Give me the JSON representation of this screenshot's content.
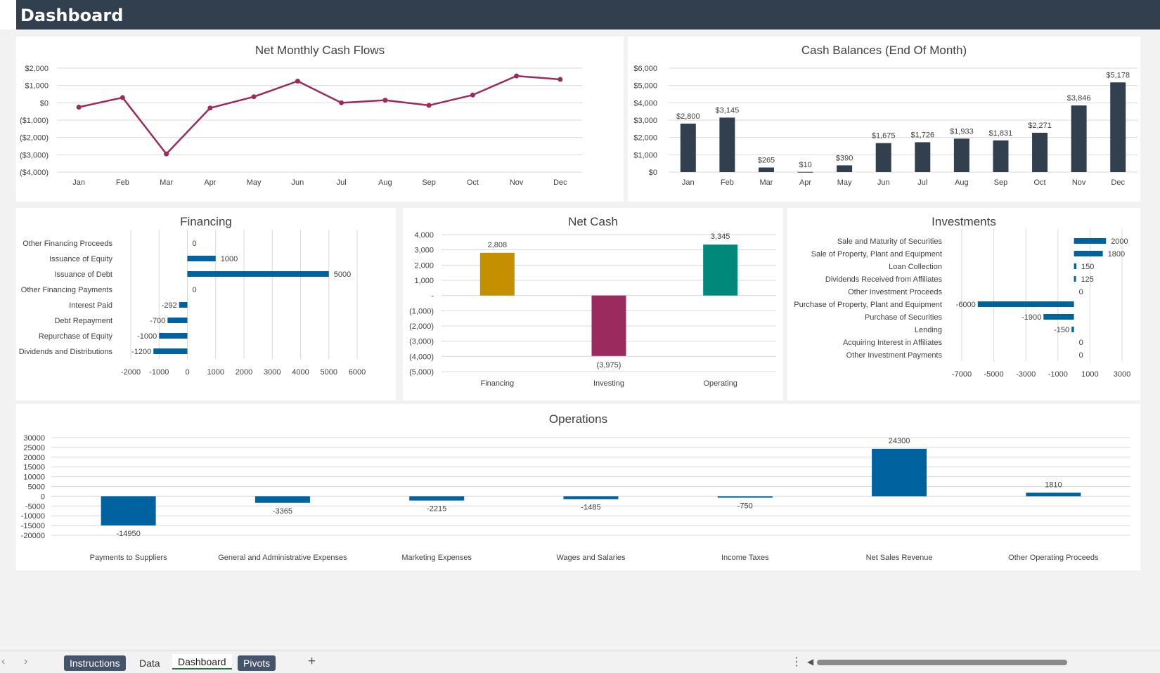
{
  "header": {
    "title": "Dashboard"
  },
  "sheet_tabs": [
    {
      "label": "Instructions",
      "style": "dark"
    },
    {
      "label": "Data",
      "style": "plain"
    },
    {
      "label": "Dashboard",
      "style": "active"
    },
    {
      "label": "Pivots",
      "style": "dark"
    }
  ],
  "colors": {
    "line": "#9b2b5e",
    "bars_dark": "#323f4f",
    "bars_blue": "#00639f",
    "financing": "#c49000",
    "investing": "#9b2b5e",
    "operating": "#00897b",
    "header": "#323f4f"
  },
  "chart_data": [
    {
      "id": "net-monthly",
      "type": "line",
      "title": "Net Monthly Cash Flows",
      "categories": [
        "Jan",
        "Feb",
        "Mar",
        "Apr",
        "May",
        "Jun",
        "Jul",
        "Aug",
        "Sep",
        "Oct",
        "Nov",
        "Dec"
      ],
      "values": [
        -250,
        300,
        -2950,
        -300,
        350,
        1250,
        0,
        150,
        -150,
        450,
        1550,
        1350
      ],
      "ylim": [
        -4000,
        2000
      ],
      "yticks": [
        "$2,000",
        "$1,000",
        "$0",
        "($1,000)",
        "($2,000)",
        "($3,000)",
        "($4,000)"
      ],
      "color": "#9b2b5e"
    },
    {
      "id": "cash-balances",
      "type": "bar",
      "title": "Cash Balances (End Of Month)",
      "categories": [
        "Jan",
        "Feb",
        "Mar",
        "Apr",
        "May",
        "Jun",
        "Jul",
        "Aug",
        "Sep",
        "Oct",
        "Nov",
        "Dec"
      ],
      "values": [
        2800,
        3145,
        265,
        10,
        390,
        1675,
        1726,
        1933,
        1831,
        2271,
        3846,
        5178
      ],
      "labels": [
        "$2,800",
        "$3,145",
        "$265",
        "$10",
        "$390",
        "$1,675",
        "$1,726",
        "$1,933",
        "$1,831",
        "$2,271",
        "$3,846",
        "$5,178"
      ],
      "ylim": [
        0,
        6000
      ],
      "yticks": [
        "$6,000",
        "$5,000",
        "$4,000",
        "$3,000",
        "$2,000",
        "$1,000",
        "$0"
      ],
      "color": "#323f4f"
    },
    {
      "id": "financing",
      "type": "bar",
      "orientation": "horizontal",
      "title": "Financing",
      "categories": [
        "Other Financing Proceeds",
        "Issuance of Equity",
        "Issuance of Debt",
        "Other Financing Payments",
        "Interest Paid",
        "Debt Repayment",
        "Repurchase of Equity",
        "Dividends and Distributions"
      ],
      "values": [
        0,
        1000,
        5000,
        0,
        -292,
        -700,
        -1000,
        -1200
      ],
      "xlim": [
        -2000,
        6000
      ],
      "xticks": [
        "-2000",
        "-1000",
        "0",
        "1000",
        "2000",
        "3000",
        "4000",
        "5000",
        "6000"
      ],
      "color": "#00639f"
    },
    {
      "id": "net-cash",
      "type": "bar",
      "title": "Net Cash",
      "categories": [
        "Financing",
        "Investing",
        "Operating"
      ],
      "values": [
        2808,
        -3975,
        3345
      ],
      "labels": [
        "2,808",
        "(3,975)",
        "3,345"
      ],
      "colors": [
        "#c49000",
        "#9b2b5e",
        "#00897b"
      ],
      "ylim": [
        -5000,
        4000
      ],
      "yticks": [
        "4,000",
        "3,000",
        "2,000",
        "1,000",
        "-",
        "(1,000)",
        "(2,000)",
        "(3,000)",
        "(4,000)",
        "(5,000)"
      ]
    },
    {
      "id": "investments",
      "type": "bar",
      "orientation": "horizontal",
      "title": "Investments",
      "categories": [
        "Sale and Maturity of Securities",
        "Sale of Property, Plant and Equipment",
        "Loan Collection",
        "Dividends Received from Affiliates",
        "Other Investment Proceeds",
        "Purchase of Property, Plant and Equipment",
        "Purchase of Securities",
        "Lending",
        "Acquiring Interest in Affiliates",
        "Other Investment Payments"
      ],
      "values": [
        2000,
        1800,
        150,
        125,
        0,
        -6000,
        -1900,
        -150,
        0,
        0
      ],
      "xlim": [
        -7000,
        3000
      ],
      "xticks": [
        "-7000",
        "-5000",
        "-3000",
        "-1000",
        "1000",
        "3000"
      ],
      "color": "#00639f"
    },
    {
      "id": "operations",
      "type": "bar",
      "title": "Operations",
      "categories": [
        "Payments to Suppliers",
        "General and Administrative Expenses",
        "Marketing Expenses",
        "Wages and Salaries",
        "Income Taxes",
        "Net Sales Revenue",
        "Other Operating Proceeds"
      ],
      "values": [
        -14950,
        -3365,
        -2215,
        -1485,
        -750,
        24300,
        1810
      ],
      "ylim": [
        -20000,
        30000
      ],
      "yticks": [
        "30000",
        "25000",
        "20000",
        "15000",
        "10000",
        "5000",
        "0",
        "-5000",
        "-10000",
        "-15000",
        "-20000"
      ],
      "color": "#00639f"
    }
  ]
}
